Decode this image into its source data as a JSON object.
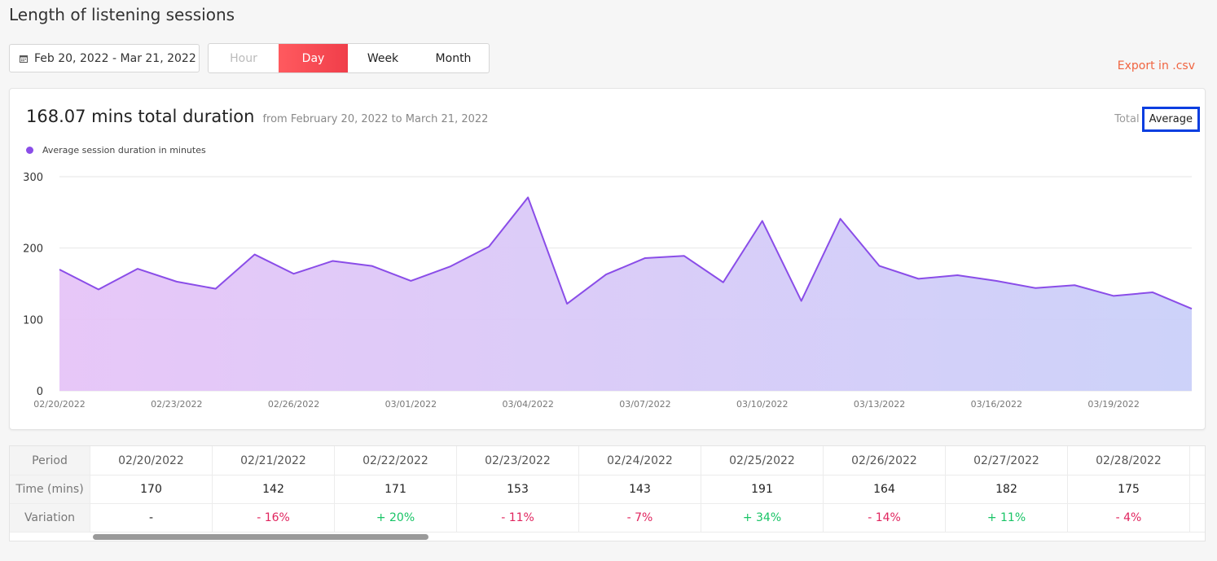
{
  "page": {
    "title": "Length of listening sessions",
    "date_range": "Feb 20, 2022 - Mar 21, 2022",
    "export_label": "Export in .csv",
    "granularity": {
      "options": [
        "Hour",
        "Day",
        "Week",
        "Month"
      ],
      "selected": "Day"
    }
  },
  "card": {
    "headline": "168.07 mins total duration",
    "subline": "from February 20, 2022 to March 21, 2022",
    "toggle_total": "Total",
    "toggle_average": "Average",
    "legend_label": "Average session duration in minutes"
  },
  "colors": {
    "accent": "#f03e4a",
    "line": "#8a4de8",
    "fill_start": "#e6c4f7",
    "fill_end": "#cad0f9",
    "export": "#f06440",
    "selected_outline": "#0a3ee0"
  },
  "chart_data": {
    "type": "area",
    "x": [
      "02/20/2022",
      "02/21/2022",
      "02/22/2022",
      "02/23/2022",
      "02/24/2022",
      "02/25/2022",
      "02/26/2022",
      "02/27/2022",
      "02/28/2022",
      "03/01/2022",
      "03/02/2022",
      "03/03/2022",
      "03/04/2022",
      "03/05/2022",
      "03/06/2022",
      "03/07/2022",
      "03/08/2022",
      "03/09/2022",
      "03/10/2022",
      "03/11/2022",
      "03/12/2022",
      "03/13/2022",
      "03/14/2022",
      "03/15/2022",
      "03/16/2022",
      "03/17/2022",
      "03/18/2022",
      "03/19/2022",
      "03/20/2022",
      "03/21/2022"
    ],
    "values": [
      170,
      142,
      171,
      153,
      143,
      191,
      164,
      182,
      175,
      154,
      174,
      202,
      271,
      122,
      163,
      186,
      189,
      152,
      238,
      126,
      241,
      175,
      157,
      162,
      154,
      144,
      148,
      133,
      138,
      115
    ],
    "x_tick_labels": [
      "02/20/2022",
      "02/23/2022",
      "02/26/2022",
      "03/01/2022",
      "03/04/2022",
      "03/07/2022",
      "03/10/2022",
      "03/13/2022",
      "03/16/2022",
      "03/19/2022"
    ],
    "y_ticks": [
      0,
      100,
      200,
      300
    ],
    "ylim": [
      0,
      300
    ],
    "series": [
      {
        "name": "Average session duration in minutes"
      }
    ],
    "legend_position": "top-left",
    "grid": true
  },
  "table": {
    "row_headers": [
      "Period",
      "Time (mins)",
      "Variation"
    ],
    "columns": [
      {
        "period": "02/20/2022",
        "time": "170",
        "variation": "-",
        "trend": "none"
      },
      {
        "period": "02/21/2022",
        "time": "142",
        "variation": "- 16%",
        "trend": "neg"
      },
      {
        "period": "02/22/2022",
        "time": "171",
        "variation": "+ 20%",
        "trend": "pos"
      },
      {
        "period": "02/23/2022",
        "time": "153",
        "variation": "- 11%",
        "trend": "neg"
      },
      {
        "period": "02/24/2022",
        "time": "143",
        "variation": "- 7%",
        "trend": "neg"
      },
      {
        "period": "02/25/2022",
        "time": "191",
        "variation": "+ 34%",
        "trend": "pos"
      },
      {
        "period": "02/26/2022",
        "time": "164",
        "variation": "- 14%",
        "trend": "neg"
      },
      {
        "period": "02/27/2022",
        "time": "182",
        "variation": "+ 11%",
        "trend": "pos"
      },
      {
        "period": "02/28/2022",
        "time": "175",
        "variation": "- 4%",
        "trend": "neg"
      }
    ]
  }
}
